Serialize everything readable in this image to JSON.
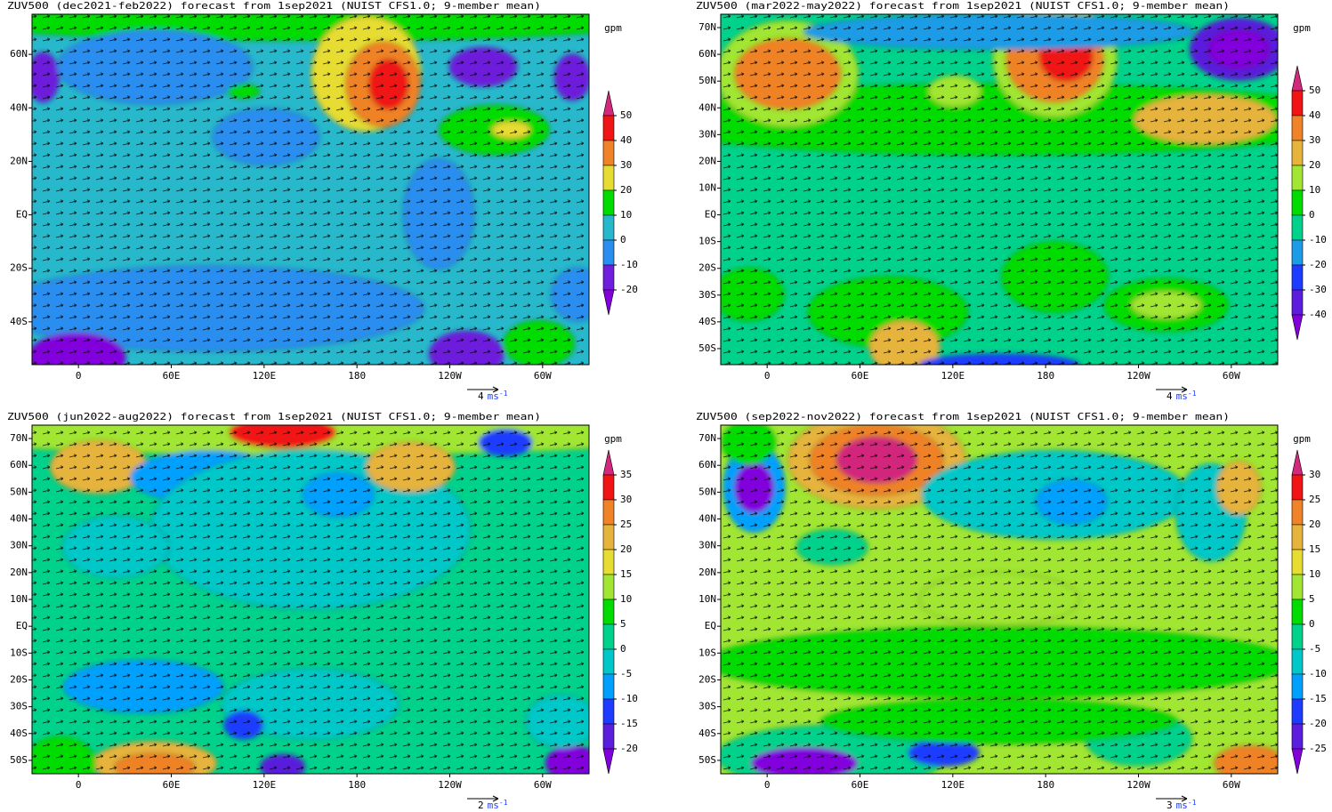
{
  "panels": [
    {
      "title": "ZUV500 (dec2021-feb2022) forecast from 1sep2021 (NUIST CFS1.0; 9-member mean)",
      "xlim": [
        -30,
        330
      ],
      "ylim": [
        -56,
        75
      ],
      "xticks": [
        0,
        {
          "value": 60,
          "label": "60E"
        },
        {
          "value": 120,
          "label": "120E"
        },
        180,
        {
          "value": 240,
          "label": "120W"
        },
        {
          "value": 300,
          "label": "60W"
        }
      ],
      "yticks": [
        {
          "value": 60,
          "label": "60N"
        },
        {
          "value": 40,
          "label": "40N"
        },
        {
          "value": 20,
          "label": "20N"
        },
        {
          "value": 0,
          "label": "EQ"
        },
        {
          "value": -20,
          "label": "20S"
        },
        {
          "value": -40,
          "label": "40S"
        }
      ],
      "colorbar": {
        "unit": "gpm",
        "ticks": [
          50,
          40,
          30,
          20,
          10,
          0,
          -10,
          -20
        ],
        "colors": [
          "#d2287d",
          "#f01414",
          "#f08228",
          "#e6dc32",
          "#00dc00",
          "#28b8cc",
          "#2a8ef0",
          "#6e1edc",
          "#8200dc"
        ]
      },
      "ref_vector": {
        "value": 4,
        "unit": "ms",
        "exponent": "-1"
      }
    },
    {
      "title": "ZUV500 (mar2022-may2022) forecast from 1sep2021 (NUIST CFS1.0; 9-member mean)",
      "xlim": [
        -30,
        330
      ],
      "ylim": [
        -56,
        75
      ],
      "xticks": [
        0,
        {
          "value": 60,
          "label": "60E"
        },
        {
          "value": 120,
          "label": "120E"
        },
        180,
        {
          "value": 240,
          "label": "120W"
        },
        {
          "value": 300,
          "label": "60W"
        }
      ],
      "yticks": [
        {
          "value": 70,
          "label": "70N"
        },
        {
          "value": 60,
          "label": "60N"
        },
        {
          "value": 50,
          "label": "50N"
        },
        {
          "value": 40,
          "label": "40N"
        },
        {
          "value": 30,
          "label": "30N"
        },
        {
          "value": 20,
          "label": "20N"
        },
        {
          "value": 10,
          "label": "10N"
        },
        {
          "value": 0,
          "label": "EQ"
        },
        {
          "value": -10,
          "label": "10S"
        },
        {
          "value": -20,
          "label": "20S"
        },
        {
          "value": -30,
          "label": "30S"
        },
        {
          "value": -40,
          "label": "40S"
        },
        {
          "value": -50,
          "label": "50S"
        }
      ],
      "colorbar": {
        "unit": "gpm",
        "ticks": [
          50,
          40,
          30,
          20,
          10,
          0,
          -10,
          -20,
          -30,
          -40
        ],
        "colors": [
          "#d2287d",
          "#f01414",
          "#f08228",
          "#e6b43c",
          "#a0e632",
          "#00dc00",
          "#00d28c",
          "#1e9be6",
          "#1e3cff",
          "#5a1edc",
          "#8200dc"
        ]
      },
      "ref_vector": {
        "value": 4,
        "unit": "ms",
        "exponent": "-1"
      }
    },
    {
      "title": "ZUV500 (jun2022-aug2022) forecast from 1sep2021 (NUIST CFS1.0; 9-member mean)",
      "xlim": [
        -30,
        330
      ],
      "ylim": [
        -55,
        75
      ],
      "xticks": [
        0,
        {
          "value": 60,
          "label": "60E"
        },
        {
          "value": 120,
          "label": "120E"
        },
        180,
        {
          "value": 240,
          "label": "120W"
        },
        {
          "value": 300,
          "label": "60W"
        }
      ],
      "yticks": [
        {
          "value": 70,
          "label": "70N"
        },
        {
          "value": 60,
          "label": "60N"
        },
        {
          "value": 50,
          "label": "50N"
        },
        {
          "value": 40,
          "label": "40N"
        },
        {
          "value": 30,
          "label": "30N"
        },
        {
          "value": 20,
          "label": "20N"
        },
        {
          "value": 10,
          "label": "10N"
        },
        {
          "value": 0,
          "label": "EQ"
        },
        {
          "value": -10,
          "label": "10S"
        },
        {
          "value": -20,
          "label": "20S"
        },
        {
          "value": -30,
          "label": "30S"
        },
        {
          "value": -40,
          "label": "40S"
        },
        {
          "value": -50,
          "label": "50S"
        }
      ],
      "colorbar": {
        "unit": "gpm",
        "ticks": [
          35,
          30,
          25,
          20,
          15,
          10,
          5,
          0,
          -5,
          -10,
          -15,
          -20
        ],
        "colors": [
          "#d2287d",
          "#f01414",
          "#f08228",
          "#e6b43c",
          "#e6dc32",
          "#a0e632",
          "#00dc00",
          "#00d28c",
          "#00c8c8",
          "#00a0ff",
          "#1e3cff",
          "#5a1edc",
          "#8200dc"
        ]
      },
      "ref_vector": {
        "value": 2,
        "unit": "ms",
        "exponent": "-1"
      }
    },
    {
      "title": "ZUV500 (sep2022-nov2022) forecast from 1sep2021 (NUIST CFS1.0; 9-member mean)",
      "xlim": [
        -30,
        330
      ],
      "ylim": [
        -55,
        75
      ],
      "xticks": [
        0,
        {
          "value": 60,
          "label": "60E"
        },
        {
          "value": 120,
          "label": "120E"
        },
        180,
        {
          "value": 240,
          "label": "120W"
        },
        {
          "value": 300,
          "label": "60W"
        }
      ],
      "yticks": [
        {
          "value": 70,
          "label": "70N"
        },
        {
          "value": 60,
          "label": "60N"
        },
        {
          "value": 50,
          "label": "50N"
        },
        {
          "value": 40,
          "label": "40N"
        },
        {
          "value": 30,
          "label": "30N"
        },
        {
          "value": 20,
          "label": "20N"
        },
        {
          "value": 10,
          "label": "10N"
        },
        {
          "value": 0,
          "label": "EQ"
        },
        {
          "value": -10,
          "label": "10S"
        },
        {
          "value": -20,
          "label": "20S"
        },
        {
          "value": -30,
          "label": "30S"
        },
        {
          "value": -40,
          "label": "40S"
        },
        {
          "value": -50,
          "label": "50S"
        }
      ],
      "colorbar": {
        "unit": "gpm",
        "ticks": [
          30,
          25,
          20,
          15,
          10,
          5,
          0,
          -5,
          -10,
          -15,
          -20,
          -25
        ],
        "colors": [
          "#d2287d",
          "#f01414",
          "#f08228",
          "#e6b43c",
          "#e6dc32",
          "#a0e632",
          "#00dc00",
          "#00d28c",
          "#00c8c8",
          "#00a0ff",
          "#1e3cff",
          "#5a1edc",
          "#8200dc"
        ]
      },
      "ref_vector": {
        "value": 3,
        "unit": "ms",
        "exponent": "-1"
      }
    }
  ]
}
